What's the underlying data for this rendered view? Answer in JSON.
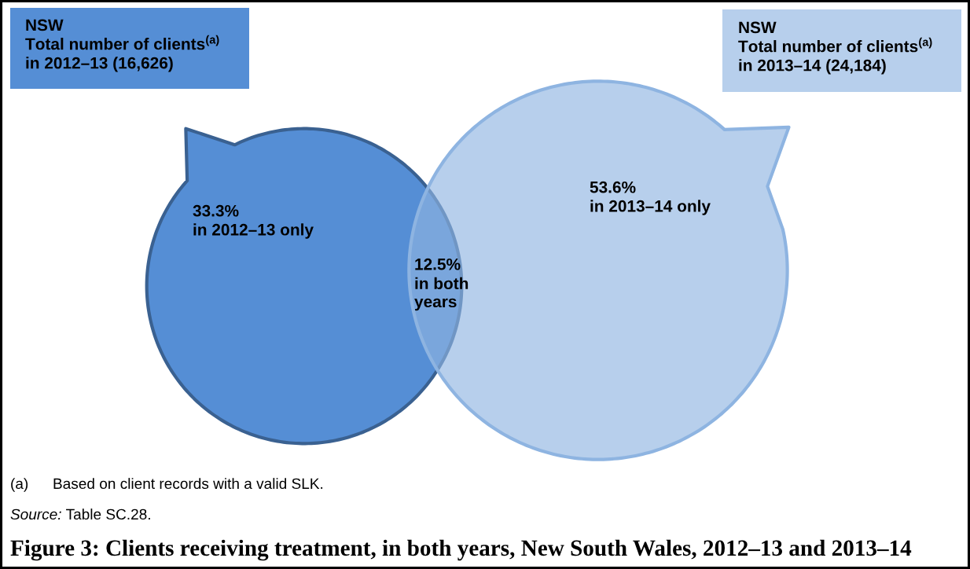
{
  "chart_data": {
    "type": "other",
    "title": "Figure 3: Clients receiving treatment, in both years, New South Wales, 2012–13 and 2013–14",
    "categories": [
      "in 2012–13 only",
      "in both\nyears",
      "in 2013–14 only"
    ],
    "values": [
      33.3,
      12.5,
      53.6
    ],
    "value_labels": [
      "33.3%",
      "12.5%",
      "53.6%"
    ],
    "colors": [
      "#558ed5",
      "#7aa6dc",
      "#b7cfec"
    ],
    "annotations": [
      "NSW\nTotal number of clients$^{(a)}$\nin 2012–13 (16,626)",
      "NSW\nTotal number of clients$^{(a)}$\nin 2013–14 (24,184)",
      "(a)\tBased on client records with a valid SLK.",
      "Source: Table SC.28."
    ]
  }
}
